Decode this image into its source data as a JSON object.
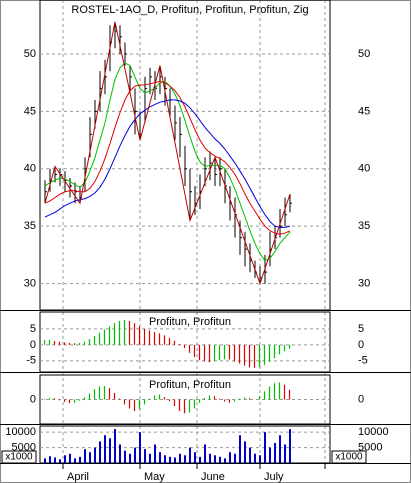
{
  "chart_data": [
    {
      "type": "hlc",
      "title": "ROSTEL-1AO_D, Profitun, Profitun, Profitun, Zig",
      "xlim": [
        -1,
        57
      ],
      "xticks": [
        {
          "value": 3.6,
          "label": "April"
        },
        {
          "value": 19,
          "label": "May"
        },
        {
          "value": 30.4,
          "label": "June"
        },
        {
          "value": 43,
          "label": "July"
        },
        {
          "value": 56,
          "label": ""
        }
      ],
      "ylim": [
        27.7,
        54.7
      ],
      "yticks": [
        30,
        35,
        40,
        45,
        50
      ],
      "grid": true,
      "bar_color": "#000000",
      "high": [
        39,
        40,
        40.2,
        40,
        39.8,
        39.2,
        38.8,
        38.5,
        41,
        44.5,
        46,
        48.5,
        49.5,
        52.5,
        52.8,
        52.5,
        51,
        49,
        47,
        45,
        48,
        48.8,
        48.5,
        49,
        48,
        47,
        45.5,
        44.5,
        42,
        40,
        38.5,
        39.5,
        41,
        41.5,
        41,
        41,
        40,
        38.5,
        37.5,
        35.5,
        34.5,
        33.5,
        32,
        31.5,
        32.5,
        34.5,
        35,
        36.5,
        37.5,
        37.8
      ],
      "low": [
        37,
        38,
        38.8,
        38.5,
        38,
        37.5,
        37,
        37,
        38,
        41,
        43.5,
        45,
        46.5,
        48.5,
        50.5,
        50,
        49,
        46.5,
        43,
        42.5,
        44,
        46.5,
        46,
        46.5,
        45.5,
        44.5,
        42.5,
        41,
        38.5,
        35.5,
        36,
        36.5,
        38.5,
        39,
        38.5,
        38.5,
        37,
        35.5,
        34,
        32.5,
        31.5,
        31,
        30.5,
        30,
        30,
        31.5,
        33,
        34,
        35,
        36.2
      ],
      "close": [
        38,
        39,
        39.5,
        39.5,
        39,
        38.5,
        38,
        37.5,
        40,
        43,
        45,
        47,
        48,
        51,
        52,
        51.5,
        50,
        48,
        45,
        43,
        47,
        48,
        47,
        48,
        47,
        46,
        44,
        43,
        40,
        38,
        37,
        38,
        40,
        40.5,
        39.5,
        40,
        38.5,
        37,
        36,
        34,
        33,
        32,
        31,
        30.5,
        31,
        33,
        34,
        35,
        36,
        37
      ],
      "lines": [
        {
          "color": "#00c000",
          "values": [
            38.5,
            38.8,
            39,
            39.2,
            39.1,
            38.9,
            38.6,
            38.4,
            38.8,
            39.8,
            41,
            42.5,
            44,
            46,
            47.8,
            48.8,
            49.2,
            49,
            48,
            47,
            46.6,
            46.8,
            47,
            47.5,
            47.6,
            47.2,
            46.5,
            45.5,
            44.2,
            42.8,
            41.5,
            40.6,
            40.2,
            40.3,
            40.3,
            40.3,
            40,
            39.2,
            38.2,
            37,
            35.8,
            34.6,
            33.5,
            32.6,
            32,
            32.2,
            32.8,
            33.5,
            34,
            34.5
          ]
        },
        {
          "color": "#e00000",
          "values": [
            37,
            37.2,
            37.5,
            37.8,
            38,
            38.1,
            38.1,
            38,
            38,
            38.3,
            38.9,
            39.8,
            40.9,
            42.2,
            43.6,
            44.9,
            46,
            46.8,
            47.2,
            47.3,
            47.3,
            47.4,
            47.5,
            47.6,
            47.5,
            47.2,
            46.8,
            46.2,
            45.4,
            44.4,
            43.4,
            42.5,
            41.8,
            41.4,
            41.1,
            40.9,
            40.6,
            40.1,
            39.5,
            38.7,
            37.8,
            37,
            36.3,
            35.6,
            35,
            34.6,
            34.4,
            34.3,
            34.4,
            34.6
          ]
        },
        {
          "color": "#0000e0",
          "values": [
            35.8,
            36,
            36.2,
            36.5,
            36.8,
            37,
            37.2,
            37.3,
            37.4,
            37.6,
            37.9,
            38.4,
            39.1,
            40,
            41,
            42,
            42.9,
            43.7,
            44.3,
            44.8,
            45.1,
            45.4,
            45.6,
            45.8,
            45.9,
            46,
            46,
            45.9,
            45.7,
            45.3,
            44.8,
            44.2,
            43.6,
            43.1,
            42.6,
            42.2,
            41.7,
            41.1,
            40.5,
            39.8,
            39.1,
            38.3,
            37.5,
            36.7,
            36,
            35.4,
            35,
            34.9,
            34.9,
            35
          ]
        }
      ],
      "zigzag": {
        "color": "#c00000",
        "x": [
          0,
          2,
          7,
          14,
          19,
          23,
          29,
          34,
          43,
          49
        ],
        "values": [
          37,
          40.2,
          37,
          52.8,
          42.5,
          49,
          35.5,
          41,
          30,
          37.8
        ]
      }
    },
    {
      "type": "histogram",
      "title": "Profitun, Profitun",
      "ylim": [
        -8.5,
        10.3
      ],
      "yticks": [
        5,
        0,
        -5
      ],
      "grid": true,
      "color_up": "#00c000",
      "color_down": "#e00000",
      "values": [
        1.5,
        1.5,
        1.2,
        1,
        0.8,
        0.6,
        0.5,
        0.6,
        1,
        1.8,
        2.8,
        3.8,
        4.8,
        5.8,
        6.8,
        7.5,
        7.8,
        7.5,
        6.8,
        5.8,
        5,
        4.5,
        4,
        3.6,
        3,
        2.2,
        1.3,
        0.3,
        -1,
        -2.5,
        -3.8,
        -4.8,
        -5.2,
        -5.4,
        -5.2,
        -4.8,
        -4.5,
        -4.6,
        -5.2,
        -5.8,
        -6.5,
        -7,
        -7.2,
        -7,
        -6.3,
        -5.3,
        -4.2,
        -3,
        -2,
        -1.2
      ]
    },
    {
      "type": "histogram",
      "title": "Profitun, Profitun",
      "ylim": [
        -6,
        6
      ],
      "yticks": [
        0
      ],
      "grid": true,
      "color_up": "#00c000",
      "color_down": "#e00000",
      "values": [
        0.2,
        0.4,
        0.3,
        -0.2,
        -0.6,
        -0.9,
        -0.8,
        -0.3,
        0.5,
        1.5,
        2.5,
        3.2,
        3.3,
        2.8,
        1.6,
        0.2,
        -1.2,
        -2.2,
        -2.8,
        -2.4,
        -1.2,
        0.2,
        1,
        1.2,
        0.6,
        -0.4,
        -1.6,
        -2.8,
        -3.4,
        -3.2,
        -2.2,
        -0.8,
        0.4,
        1,
        0.8,
        0.2,
        -0.5,
        -0.8,
        -0.5,
        0.2,
        0.5,
        0.3,
        0,
        0.8,
        2,
        3.2,
        4,
        4.2,
        3.6,
        2.4
      ]
    },
    {
      "type": "volume",
      "unit_label": "x1000",
      "ylim": [
        0,
        12000
      ],
      "yticks": [
        10000,
        5000
      ],
      "grid": true,
      "color": "#0000c8",
      "values": [
        1500,
        2200,
        1800,
        1200,
        2500,
        3000,
        1500,
        2000,
        4500,
        3500,
        5000,
        7000,
        9000,
        8000,
        11000,
        6000,
        4000,
        3000,
        5000,
        10000,
        4500,
        3000,
        6000,
        3500,
        2500,
        2000,
        1800,
        3000,
        2500,
        5000,
        3500,
        2000,
        6000,
        3000,
        2500,
        2000,
        1500,
        3500,
        3000,
        9000,
        7000,
        5000,
        3000,
        2500,
        10000,
        5000,
        6500,
        9000,
        6000,
        11000
      ]
    }
  ]
}
